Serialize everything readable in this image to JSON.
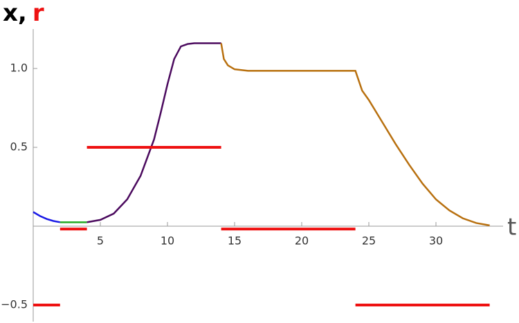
{
  "chart_data": {
    "type": "line",
    "y_label_parts": [
      "x,",
      "r"
    ],
    "y_label_colors": [
      "#000000",
      "#ee1111"
    ],
    "x_label": "t",
    "xlim": [
      0,
      35
    ],
    "ylim": [
      -0.57,
      1.25
    ],
    "xticks": [
      5,
      10,
      15,
      20,
      25,
      30
    ],
    "yticks": [
      {
        "value": -0.5,
        "label": "−0.5"
      },
      0.5,
      {
        "value": 1.0,
        "label": "1.0"
      }
    ],
    "series": [
      {
        "color": "#1a1ae6",
        "linewidth": 2.5,
        "x": [
          0,
          0.5,
          1,
          1.5,
          2
        ],
        "values": [
          0.09,
          0.065,
          0.046,
          0.033,
          0.025
        ]
      },
      {
        "color": "#22aa22",
        "linewidth": 2.5,
        "x": [
          2,
          3,
          4
        ],
        "values": [
          0.025,
          0.025,
          0.025
        ]
      },
      {
        "color": "#4b0a5e",
        "linewidth": 2.5,
        "x": [
          4,
          5,
          6,
          7,
          8,
          9,
          9.5,
          10,
          10.5,
          11,
          11.5,
          12,
          14
        ],
        "values": [
          0.025,
          0.04,
          0.08,
          0.17,
          0.32,
          0.55,
          0.72,
          0.9,
          1.06,
          1.14,
          1.155,
          1.16,
          1.16
        ]
      },
      {
        "color": "#b8700f",
        "linewidth": 2.5,
        "x": [
          14,
          14.2,
          14.5,
          15,
          16,
          24,
          24.5,
          25,
          26,
          27,
          28,
          29,
          30,
          31,
          32,
          33,
          34
        ],
        "values": [
          1.16,
          1.06,
          1.02,
          0.995,
          0.985,
          0.985,
          0.86,
          0.8,
          0.66,
          0.52,
          0.39,
          0.27,
          0.17,
          0.1,
          0.05,
          0.02,
          0.005
        ]
      },
      {
        "color": "#ee1111",
        "linewidth": 4,
        "x": [
          0,
          2
        ],
        "values": [
          -0.5,
          -0.5
        ]
      },
      {
        "color": "#ee1111",
        "linewidth": 4,
        "x": [
          2,
          4
        ],
        "values": [
          -0.018,
          -0.018
        ]
      },
      {
        "color": "#ee1111",
        "linewidth": 4,
        "x": [
          4,
          14
        ],
        "values": [
          0.5,
          0.5
        ]
      },
      {
        "color": "#ee1111",
        "linewidth": 4,
        "x": [
          14,
          24
        ],
        "values": [
          -0.018,
          -0.018
        ]
      },
      {
        "color": "#ee1111",
        "linewidth": 4,
        "x": [
          24,
          34
        ],
        "values": [
          -0.5,
          -0.5
        ]
      }
    ]
  }
}
